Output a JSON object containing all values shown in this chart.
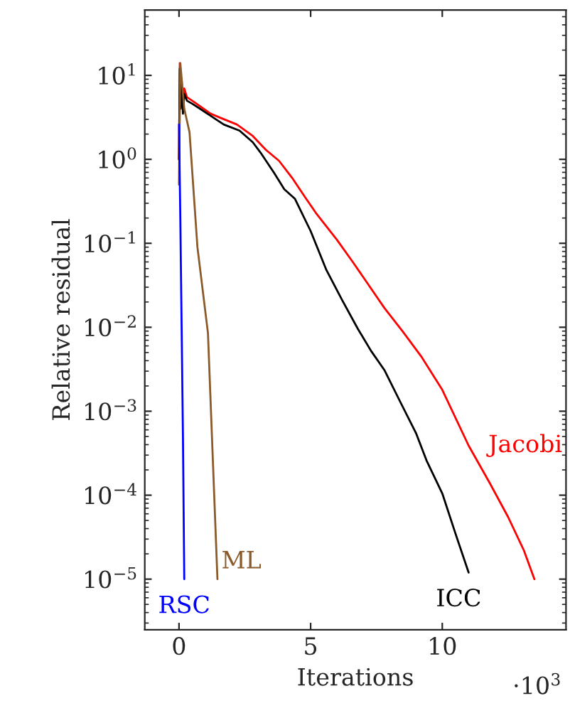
{
  "chart_data": {
    "type": "line",
    "xlabel": "Iterations",
    "ylabel": "Relative residual",
    "log": "y",
    "grid": false,
    "legend": false,
    "marker": "none",
    "line_style": "solid",
    "xlim": [
      -1.3,
      14.7
    ],
    "xticks": [
      0,
      5,
      10
    ],
    "ylim": [
      2.5e-06,
      60
    ],
    "yticks": [
      {
        "value": 10,
        "label": "10$^{1}$"
      },
      {
        "value": 1,
        "label": "10$^{0}$"
      },
      {
        "value": 0.1,
        "label": "10$^{−1}$"
      },
      {
        "value": 0.01,
        "label": "10$^{−2}$"
      },
      {
        "value": 0.001,
        "label": "10$^{−3}$"
      },
      {
        "value": 0.0001,
        "label": "10$^{−4}$"
      },
      {
        "value": 1e-05,
        "label": "10$^{−5}$"
      }
    ],
    "annotations": [
      "·10$^{3}$"
    ],
    "series": [
      {
        "name": "Jacobi",
        "color": "#ff0000",
        "x": [
          0,
          0.03,
          0.06,
          0.1,
          0.15,
          0.2,
          0.3,
          0.5,
          0.8,
          1.2,
          1.6,
          2.2,
          2.8,
          3.3,
          3.8,
          4.3,
          4.8,
          5.2,
          6.0,
          6.6,
          7.2,
          7.8,
          8.5,
          9.2,
          10.0,
          11.0,
          11.8,
          12.5,
          13.1,
          13.5
        ],
        "values": [
          1,
          14,
          5,
          9,
          4,
          7,
          5.5,
          5,
          4.3,
          3.5,
          3.1,
          2.6,
          1.9,
          1.3,
          0.96,
          0.6,
          0.35,
          0.23,
          0.11,
          0.06,
          0.032,
          0.017,
          0.0089,
          0.0045,
          0.0018,
          0.00039,
          0.00014,
          5.5e-05,
          2.2e-05,
          1e-05
        ]
      },
      {
        "name": "ICC",
        "color": "#000000",
        "x": [
          0,
          0.03,
          0.06,
          0.1,
          0.15,
          0.2,
          0.3,
          0.5,
          0.8,
          1.2,
          1.7,
          2.3,
          2.8,
          3.1,
          3.6,
          4.0,
          4.4,
          5.0,
          5.6,
          6.2,
          6.8,
          7.3,
          7.8,
          8.4,
          9.0,
          9.4,
          10.0,
          10.5,
          11.0
        ],
        "values": [
          1,
          12,
          4,
          8,
          3.5,
          6,
          5,
          4.6,
          4,
          3.3,
          2.6,
          2.2,
          1.6,
          1.2,
          0.7,
          0.44,
          0.34,
          0.14,
          0.048,
          0.021,
          0.0095,
          0.0052,
          0.0031,
          0.0013,
          0.00055,
          0.00026,
          0.000105,
          3.5e-05,
          1.2e-05
        ]
      },
      {
        "name": "ML",
        "color": "#8b5a2b",
        "x": [
          0,
          0.05,
          0.2,
          0.4,
          0.7,
          1.1,
          1.46
        ],
        "values": [
          0.5,
          14,
          4,
          2.1,
          0.09,
          0.0085,
          1e-05
        ]
      },
      {
        "name": "RSC",
        "color": "#0000ff",
        "x": [
          0,
          0.05,
          0.1,
          0.15,
          0.2
        ],
        "values": [
          2.6,
          0.2,
          0.01,
          0.0005,
          1e-05
        ]
      }
    ]
  }
}
